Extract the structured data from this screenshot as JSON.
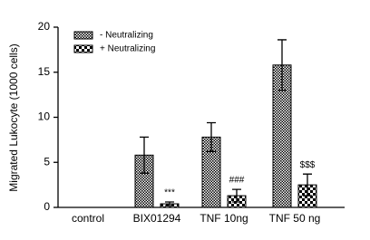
{
  "chart_data": {
    "type": "bar",
    "y_label": "Migrated Lukocyte (1000 cells)",
    "categories": [
      "control",
      "BIX01294",
      "TNF 10ng",
      "TNF 50 ng"
    ],
    "series": [
      {
        "name": "- Neutralizing",
        "color": "#000000",
        "values": [
          0,
          5.8,
          7.8,
          15.8
        ],
        "errors": [
          null,
          2.0,
          1.6,
          2.8
        ]
      },
      {
        "name": "+ Neutralizing",
        "color": "#000000",
        "values": [
          0,
          0.4,
          1.3,
          2.5
        ],
        "errors": [
          null,
          0.2,
          0.7,
          1.2
        ],
        "annotations": [
          null,
          "***",
          "###",
          "$$$"
        ]
      }
    ],
    "ylim": [
      0,
      20
    ],
    "yticks": [
      0,
      5,
      10,
      15,
      20
    ],
    "legend": "top-left"
  }
}
